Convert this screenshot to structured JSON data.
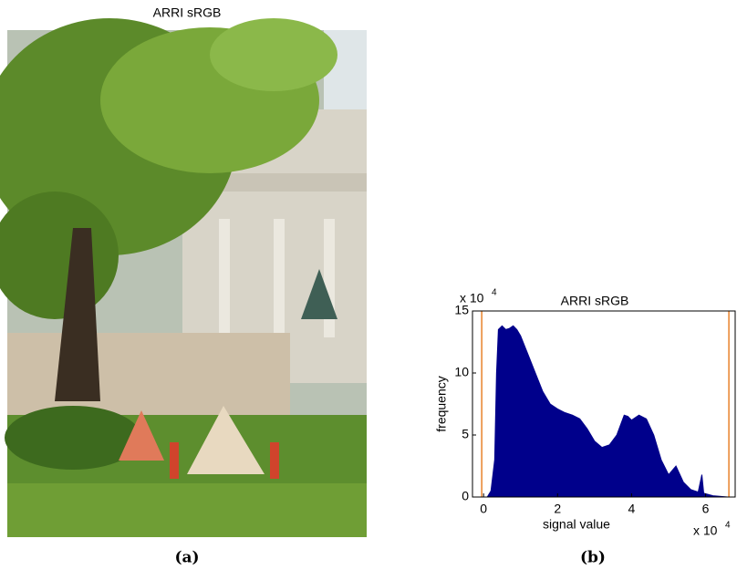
{
  "image": {
    "title": "ARRI sRGB",
    "caption": "(a)"
  },
  "chart_data": {
    "type": "area",
    "title": "ARRI sRGB",
    "xlabel": "signal value",
    "ylabel": "frequency",
    "caption": "(b)",
    "color": "#00008b",
    "x": [
      0,
      0.1,
      0.2,
      0.3,
      0.35,
      0.4,
      0.5,
      0.6,
      0.7,
      0.8,
      0.9,
      1.0,
      1.2,
      1.4,
      1.6,
      1.8,
      2.0,
      2.2,
      2.4,
      2.6,
      2.8,
      3.0,
      3.2,
      3.4,
      3.6,
      3.8,
      3.9,
      4.0,
      4.2,
      4.4,
      4.6,
      4.8,
      5.0,
      5.2,
      5.4,
      5.6,
      5.8,
      5.9,
      5.95,
      6.2,
      6.6
    ],
    "values": [
      0,
      0,
      0.5,
      3,
      10,
      13.5,
      13.8,
      13.5,
      13.6,
      13.8,
      13.5,
      13,
      11.5,
      10,
      8.5,
      7.5,
      7.1,
      6.8,
      6.6,
      6.3,
      5.5,
      4.5,
      4.0,
      4.2,
      5.0,
      6.6,
      6.5,
      6.2,
      6.6,
      6.3,
      5.0,
      3.0,
      1.8,
      2.5,
      1.2,
      0.6,
      0.4,
      1.8,
      0.3,
      0.1,
      0
    ],
    "markers": [
      -0.05,
      6.63
    ],
    "marker_color": "#e8822a",
    "xlim": [
      -0.3,
      6.8
    ],
    "ylim": [
      0,
      15
    ],
    "xticks": [
      0,
      2,
      4,
      6
    ],
    "yticks": [
      0,
      5,
      10,
      15
    ],
    "x_multiplier": {
      "base": "x 10",
      "exp": "4"
    },
    "y_multiplier": {
      "base": "x 10",
      "exp": "4"
    }
  }
}
